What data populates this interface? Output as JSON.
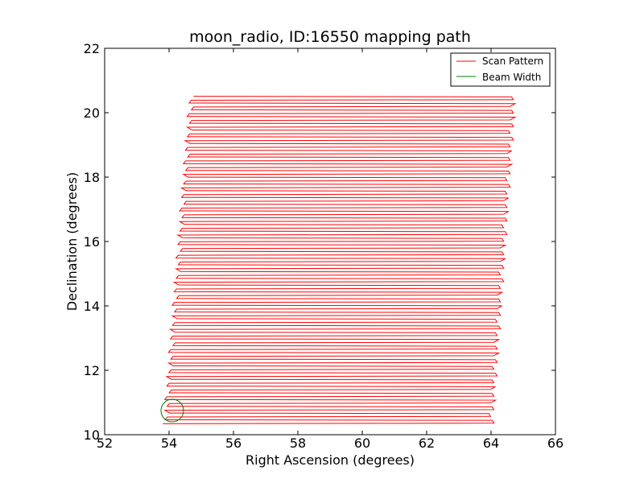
{
  "chart_data": {
    "type": "line",
    "title": "moon_radio, ID:16550 mapping path",
    "xlabel": "Right Ascension (degrees)",
    "ylabel": "Declination (degrees)",
    "xlim": [
      52,
      66
    ],
    "ylim": [
      10,
      22
    ],
    "xticks": [
      "52",
      "54",
      "56",
      "58",
      "60",
      "62",
      "64",
      "66"
    ],
    "yticks": [
      "10",
      "12",
      "14",
      "16",
      "18",
      "20",
      "22"
    ],
    "grid": false,
    "legend_position": "top-right",
    "series": [
      {
        "name": "Scan Pattern",
        "color": "#ff0000",
        "pattern": "boustrophedon raster scan",
        "rows": 98,
        "dec_range": [
          10.35,
          20.5
        ],
        "ra_start_bottom": [
          53.9,
          64.0
        ],
        "ra_start_top": [
          54.7,
          64.7
        ]
      },
      {
        "name": "Beam Width",
        "color": "#008000",
        "shape": "circle",
        "center": [
          54.1,
          10.75
        ],
        "radius_deg": 0.35
      }
    ]
  }
}
